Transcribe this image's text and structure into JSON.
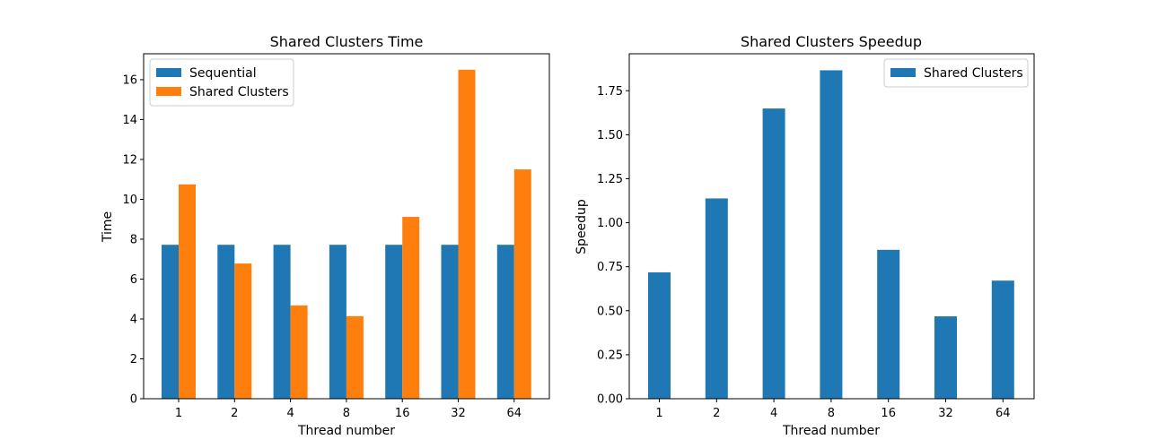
{
  "chart_data": [
    {
      "type": "bar",
      "title": "Shared Clusters Time",
      "xlabel": "Thread number",
      "ylabel": "Time",
      "categories": [
        "1",
        "2",
        "4",
        "8",
        "16",
        "32",
        "64"
      ],
      "series": [
        {
          "name": "Sequential",
          "color": "#1f77b4",
          "values": [
            7.72,
            7.72,
            7.72,
            7.72,
            7.72,
            7.72,
            7.72
          ]
        },
        {
          "name": "Shared Clusters",
          "color": "#ff7f0e",
          "values": [
            10.75,
            6.78,
            4.68,
            4.14,
            9.12,
            16.5,
            11.5
          ]
        }
      ],
      "ylim": [
        0,
        17.3
      ],
      "yticks": [
        0,
        2,
        4,
        6,
        8,
        10,
        12,
        14,
        16
      ],
      "ytick_labels": [
        "0",
        "2",
        "4",
        "6",
        "8",
        "10",
        "12",
        "14",
        "16"
      ],
      "legend_position": "top-left",
      "grid": false
    },
    {
      "type": "bar",
      "title": "Shared Clusters Speedup",
      "xlabel": "Thread number",
      "ylabel": "Speedup",
      "categories": [
        "1",
        "2",
        "4",
        "8",
        "16",
        "32",
        "64"
      ],
      "series": [
        {
          "name": "Shared Clusters",
          "color": "#1f77b4",
          "values": [
            0.718,
            1.138,
            1.649,
            1.866,
            0.846,
            0.468,
            0.671
          ]
        }
      ],
      "ylim": [
        0,
        1.96
      ],
      "yticks": [
        0,
        0.25,
        0.5,
        0.75,
        1.0,
        1.25,
        1.5,
        1.75
      ],
      "ytick_labels": [
        "0.00",
        "0.25",
        "0.50",
        "0.75",
        "1.00",
        "1.25",
        "1.50",
        "1.75"
      ],
      "legend_position": "top-right",
      "grid": false
    }
  ]
}
